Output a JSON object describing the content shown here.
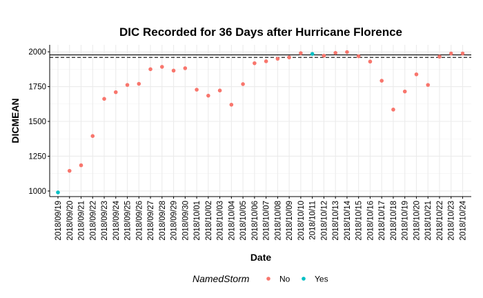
{
  "chart_data": {
    "type": "scatter",
    "title": "DIC Recorded for 36 Days after Hurricane Florence",
    "xlabel": "Date",
    "ylabel": "DICMEAN",
    "categories": [
      "2018/09/19",
      "2018/09/20",
      "2018/09/21",
      "2018/09/22",
      "2018/09/23",
      "2018/09/24",
      "2018/09/25",
      "2018/09/26",
      "2018/09/27",
      "2018/09/28",
      "2018/09/29",
      "2018/09/30",
      "2018/10/01",
      "2018/10/02",
      "2018/10/03",
      "2018/10/04",
      "2018/10/05",
      "2018/10/06",
      "2018/10/07",
      "2018/10/08",
      "2018/10/09",
      "2018/10/10",
      "2018/10/11",
      "2018/10/12",
      "2018/10/13",
      "2018/10/14",
      "2018/10/15",
      "2018/10/16",
      "2018/10/17",
      "2018/10/18",
      "2018/10/19",
      "2018/10/20",
      "2018/10/21",
      "2018/10/22",
      "2018/10/23",
      "2018/10/24"
    ],
    "values": [
      990,
      1145,
      1185,
      1395,
      1662,
      1710,
      1762,
      1770,
      1875,
      1892,
      1865,
      1882,
      1728,
      1685,
      1722,
      1620,
      1768,
      1918,
      1932,
      1950,
      1960,
      1990,
      1985,
      1972,
      1992,
      1998,
      1968,
      1930,
      1792,
      1585,
      1715,
      1838,
      1762,
      1965,
      1988,
      1988
    ],
    "groups": [
      "Yes",
      "No",
      "No",
      "No",
      "No",
      "No",
      "No",
      "No",
      "No",
      "No",
      "No",
      "No",
      "No",
      "No",
      "No",
      "No",
      "No",
      "No",
      "No",
      "No",
      "No",
      "No",
      "Yes",
      "No",
      "No",
      "No",
      "No",
      "No",
      "No",
      "No",
      "No",
      "No",
      "No",
      "No",
      "No",
      "No"
    ],
    "yticks": [
      1000,
      1250,
      1500,
      1750,
      2000
    ],
    "ylim": [
      960,
      2050
    ],
    "reference_lines": [
      {
        "style": "solid",
        "y": 1978
      },
      {
        "style": "dashed",
        "y": 1960
      }
    ],
    "grid": true,
    "legend": {
      "title": "NamedStorm",
      "placement": "bottom",
      "entries": [
        {
          "label": "No",
          "color": "#F8766D"
        },
        {
          "label": "Yes",
          "color": "#00BFC4"
        }
      ]
    }
  }
}
